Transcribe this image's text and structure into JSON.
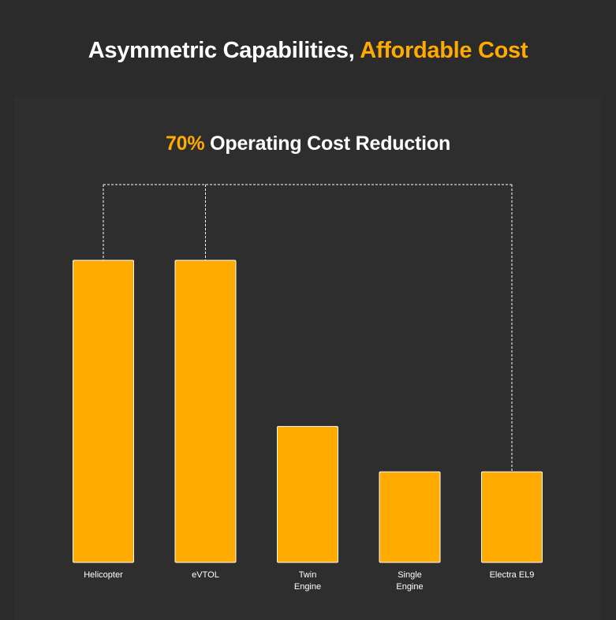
{
  "header": {
    "title_part1": "Asymmetric Capabilities, ",
    "title_part2": "Affordable Cost"
  },
  "colors": {
    "accent": "#ffaa00",
    "background": "#2b2b2b",
    "panel": "#2e2e2e",
    "text": "#ffffff"
  },
  "chart_data": {
    "type": "bar",
    "title_highlight": "70%",
    "title_rest": " Operating Cost Reduction",
    "categories": [
      "Helicopter",
      "eVTOL",
      "Twin\nEngine",
      "Single\nEngine",
      "Electra EL9"
    ],
    "values": [
      100,
      100,
      45,
      30,
      30
    ],
    "value_unit": "relative operating cost (Helicopter = 100)",
    "ylim": [
      0,
      100
    ],
    "grid": false,
    "axes_visible": false,
    "bar_color": "#ffaa00",
    "bracket": {
      "style": "dashed",
      "connects": [
        "Helicopter",
        "eVTOL",
        "Electra EL9"
      ]
    }
  }
}
